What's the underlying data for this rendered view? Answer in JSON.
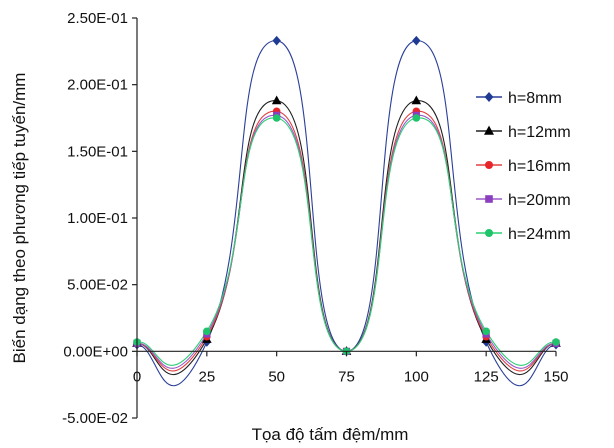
{
  "chart_data": {
    "type": "line",
    "title": "",
    "xlabel": "Tọa độ tấm đệm/mm",
    "ylabel": "Biến dạng theo phương tiếp tuyến/mm",
    "xlim": [
      0,
      150
    ],
    "ylim": [
      -0.05,
      0.25
    ],
    "x_ticks": [
      0,
      25,
      50,
      75,
      100,
      125,
      150
    ],
    "x_tick_labels": [
      "0",
      "25",
      "50",
      "75",
      "100",
      "125",
      "150"
    ],
    "y_ticks": [
      -0.05,
      0,
      0.05,
      0.1,
      0.15,
      0.2,
      0.25
    ],
    "y_tick_labels": [
      "-5.00E-02",
      "0.00E+00",
      "5.00E-02",
      "1.00E-01",
      "1.50E-01",
      "2.00E-01",
      "2.50E-01"
    ],
    "grid": false,
    "legend_position": "right",
    "smooth": true,
    "x": [
      0,
      25,
      50,
      75,
      100,
      125,
      150
    ],
    "series": [
      {
        "name": "h=8mm",
        "marker": "diamond",
        "color": "#1f3a93",
        "line_color": "#2a3f9a",
        "values": [
          0.005,
          0.007,
          0.233,
          0.0,
          0.233,
          0.007,
          0.005
        ]
      },
      {
        "name": "h=12mm",
        "marker": "triangle",
        "color": "#000000",
        "line_color": "#222222",
        "values": [
          0.006,
          0.009,
          0.188,
          0.0,
          0.188,
          0.009,
          0.006
        ]
      },
      {
        "name": "h=16mm",
        "marker": "circle",
        "color": "#e8262a",
        "line_color": "#e04040",
        "values": [
          0.006,
          0.011,
          0.18,
          0.0,
          0.18,
          0.011,
          0.006
        ]
      },
      {
        "name": "h=20mm",
        "marker": "square",
        "color": "#8a3fbf",
        "line_color": "#9b59c9",
        "values": [
          0.006,
          0.013,
          0.177,
          0.0,
          0.177,
          0.013,
          0.006
        ]
      },
      {
        "name": "h=24mm",
        "marker": "circle",
        "color": "#1fc46a",
        "line_color": "#2ccf74",
        "values": [
          0.007,
          0.015,
          0.175,
          0.0,
          0.175,
          0.015,
          0.007
        ]
      }
    ]
  }
}
